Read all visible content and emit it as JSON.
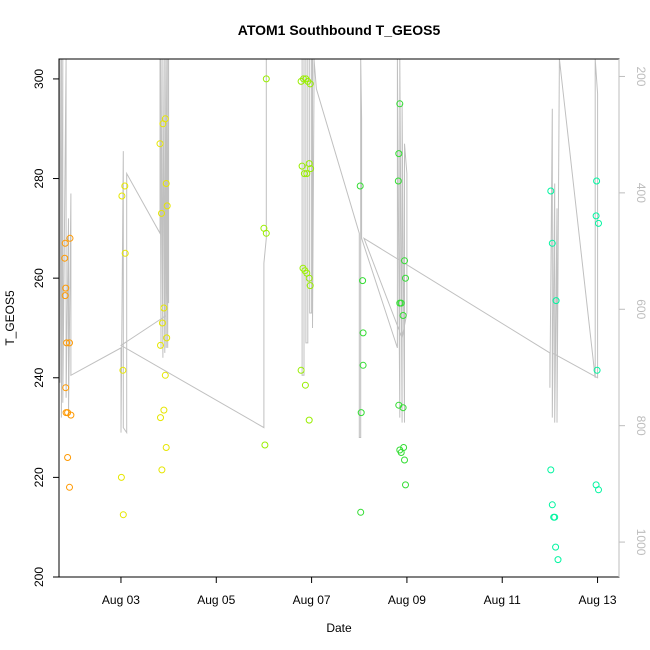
{
  "chart_data": {
    "type": "scatter",
    "title": "ATOM1 Southbound T_GEOS5",
    "xlabel": "Date",
    "ylabel": "T_GEOS5",
    "x_unit": "days since 2016-08-01",
    "xlim": [
      1.7,
      13.45
    ],
    "ylim": [
      200,
      304
    ],
    "y2lim": [
      1060,
      170
    ],
    "x_ticks": [
      {
        "label": "Aug 03",
        "value": 3
      },
      {
        "label": "Aug 05",
        "value": 5
      },
      {
        "label": "Aug 07",
        "value": 7
      },
      {
        "label": "Aug 09",
        "value": 9
      },
      {
        "label": "Aug 11",
        "value": 11
      },
      {
        "label": "Aug 13",
        "value": 13
      }
    ],
    "y_ticks": [
      "200",
      "220",
      "240",
      "260",
      "280",
      "300"
    ],
    "y2_ticks": [
      "200",
      "400",
      "600",
      "800",
      "1000"
    ],
    "colors": {
      "axis": "#000000",
      "secondary_axis": "#bdbdbd",
      "trace_line": "#c0c0c0"
    },
    "series": [
      {
        "color": "#ff9900",
        "points": [
          [
            1.83,
            267
          ],
          [
            1.82,
            264
          ],
          [
            1.84,
            258
          ],
          [
            1.83,
            256.5
          ],
          [
            1.86,
            247
          ],
          [
            1.92,
            247
          ],
          [
            1.84,
            238
          ],
          [
            1.85,
            233
          ],
          [
            1.88,
            233
          ],
          [
            1.95,
            232.5
          ],
          [
            1.88,
            224
          ],
          [
            1.92,
            218
          ],
          [
            1.93,
            268
          ]
        ]
      },
      {
        "color": "#e6e600",
        "points": [
          [
            3.02,
            276.5
          ],
          [
            3.08,
            278.5
          ],
          [
            3.09,
            265
          ],
          [
            3.04,
            241.5
          ],
          [
            3.01,
            220
          ],
          [
            3.05,
            212.5
          ],
          [
            3.82,
            287
          ],
          [
            3.85,
            273
          ],
          [
            3.88,
            291
          ],
          [
            3.93,
            292
          ],
          [
            3.95,
            279
          ],
          [
            3.97,
            274.5
          ],
          [
            3.87,
            251
          ],
          [
            3.83,
            246.5
          ],
          [
            3.9,
            254
          ],
          [
            3.96,
            248
          ],
          [
            3.93,
            240.5
          ],
          [
            3.9,
            233.5
          ],
          [
            3.83,
            232
          ],
          [
            3.86,
            221.5
          ],
          [
            3.95,
            226
          ]
        ]
      },
      {
        "color": "#99ee00",
        "points": [
          [
            6.0,
            270
          ],
          [
            6.05,
            269
          ],
          [
            6.05,
            300
          ],
          [
            6.02,
            226.5
          ],
          [
            6.78,
            299.5
          ],
          [
            6.83,
            300
          ],
          [
            6.88,
            300
          ],
          [
            6.92,
            299.5
          ],
          [
            6.97,
            299
          ],
          [
            6.8,
            282.5
          ],
          [
            6.85,
            281
          ],
          [
            6.9,
            281
          ],
          [
            6.95,
            283
          ],
          [
            6.98,
            282
          ],
          [
            6.82,
            262
          ],
          [
            6.86,
            261.5
          ],
          [
            6.9,
            261
          ],
          [
            6.95,
            260
          ],
          [
            6.97,
            258.5
          ],
          [
            6.78,
            241.5
          ],
          [
            6.87,
            238.5
          ],
          [
            6.95,
            231.5
          ]
        ]
      },
      {
        "color": "#33dd33",
        "points": [
          [
            8.02,
            278.5
          ],
          [
            8.07,
            259.5
          ],
          [
            8.08,
            249
          ],
          [
            8.08,
            242.5
          ],
          [
            8.04,
            233
          ],
          [
            8.03,
            213
          ],
          [
            8.85,
            295
          ],
          [
            8.83,
            285
          ],
          [
            8.82,
            279.5
          ],
          [
            8.85,
            255
          ],
          [
            8.88,
            255
          ],
          [
            8.92,
            252.5
          ],
          [
            8.95,
            263.5
          ],
          [
            8.97,
            260
          ],
          [
            8.83,
            234.5
          ],
          [
            8.92,
            234
          ],
          [
            8.85,
            225.5
          ],
          [
            8.88,
            225
          ],
          [
            8.93,
            226
          ],
          [
            8.95,
            223.5
          ],
          [
            8.97,
            218.5
          ]
        ]
      },
      {
        "color": "#00f5a0",
        "points": [
          [
            12.02,
            277.5
          ],
          [
            12.05,
            267
          ],
          [
            12.13,
            255.5
          ],
          [
            12.02,
            221.5
          ],
          [
            12.05,
            214.5
          ],
          [
            12.08,
            212
          ],
          [
            12.1,
            212
          ],
          [
            12.12,
            206
          ],
          [
            12.17,
            203.5
          ],
          [
            12.98,
            279.5
          ],
          [
            12.97,
            272.5
          ],
          [
            13.02,
            271
          ],
          [
            12.99,
            241.5
          ],
          [
            12.97,
            218.5
          ],
          [
            13.02,
            217.5
          ]
        ]
      }
    ],
    "trace": [
      [
        1.72,
        304
      ],
      [
        1.72,
        239
      ],
      [
        1.75,
        304
      ],
      [
        1.75,
        232
      ],
      [
        1.78,
        304
      ],
      [
        1.78,
        235
      ],
      [
        1.85,
        304
      ],
      [
        1.85,
        236
      ],
      [
        1.9,
        272
      ],
      [
        1.9,
        232
      ],
      [
        1.95,
        277
      ],
      [
        1.95,
        240.5
      ],
      [
        3.0,
        246
      ],
      [
        3.0,
        229
      ],
      [
        3.05,
        285.5
      ],
      [
        3.05,
        230
      ],
      [
        3.12,
        229
      ],
      [
        3.12,
        281
      ],
      [
        3.82,
        269
      ],
      [
        3.82,
        304
      ],
      [
        3.84,
        246
      ],
      [
        3.84,
        304
      ],
      [
        3.88,
        244
      ],
      [
        3.88,
        304
      ],
      [
        3.92,
        245
      ],
      [
        3.92,
        304
      ],
      [
        3.95,
        246
      ],
      [
        3.95,
        304
      ],
      [
        3.98,
        246
      ],
      [
        3.98,
        304
      ],
      [
        4.0,
        255
      ],
      [
        4.0,
        304
      ],
      [
        3.95,
        252.5
      ],
      [
        3.0,
        246.5
      ],
      [
        6.0,
        230
      ],
      [
        6.0,
        263
      ],
      [
        6.05,
        268
      ],
      [
        6.05,
        304
      ],
      [
        6.7,
        304
      ],
      [
        6.8,
        304
      ],
      [
        6.8,
        240.5
      ],
      [
        6.84,
        240.5
      ],
      [
        6.84,
        304
      ],
      [
        6.88,
        304
      ],
      [
        6.88,
        247
      ],
      [
        6.92,
        247
      ],
      [
        6.92,
        304
      ],
      [
        6.96,
        304
      ],
      [
        6.96,
        253
      ],
      [
        7.0,
        253
      ],
      [
        7.0,
        304
      ],
      [
        7.02,
        304
      ],
      [
        7.02,
        250
      ],
      [
        7.05,
        298
      ],
      [
        7.05,
        304
      ],
      [
        7.1,
        298
      ],
      [
        8.0,
        269
      ],
      [
        8.0,
        228
      ],
      [
        8.03,
        228
      ],
      [
        8.03,
        304
      ],
      [
        8.05,
        292
      ],
      [
        8.05,
        268
      ],
      [
        8.8,
        246
      ],
      [
        8.8,
        304
      ],
      [
        8.85,
        232
      ],
      [
        8.85,
        304
      ],
      [
        8.9,
        231
      ],
      [
        8.9,
        295
      ],
      [
        8.95,
        231
      ],
      [
        8.95,
        287
      ],
      [
        9.0,
        281
      ],
      [
        9.0,
        253
      ],
      [
        8.9,
        248
      ],
      [
        8.1,
        268
      ],
      [
        12.0,
        245
      ],
      [
        12.0,
        238
      ],
      [
        12.05,
        294
      ],
      [
        12.05,
        232
      ],
      [
        12.1,
        279
      ],
      [
        12.1,
        231
      ],
      [
        12.15,
        274
      ],
      [
        12.15,
        231
      ],
      [
        12.2,
        304
      ],
      [
        12.95,
        240
      ],
      [
        12.95,
        304
      ],
      [
        13.0,
        297
      ],
      [
        13.0,
        240
      ],
      [
        12.05,
        245
      ]
    ]
  }
}
